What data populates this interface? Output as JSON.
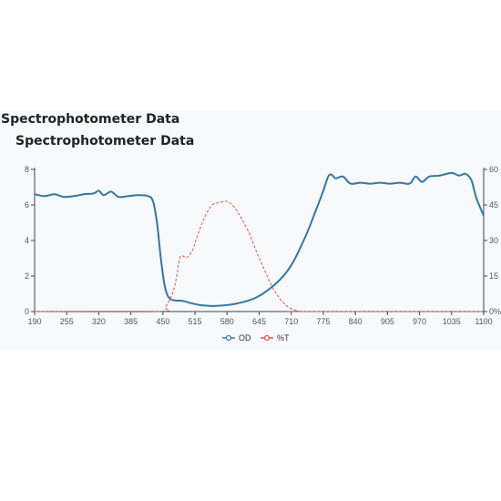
{
  "page": {
    "title_primary": "Spectrophotometer Data",
    "title_secondary": "Spectrophotometer Data"
  },
  "colors": {
    "od": "#3377a2",
    "pt": "#d9534f",
    "axis": "#444444",
    "tick_text": "#555555",
    "panel_bg": "#f7f9fb"
  },
  "chart_data": {
    "type": "line",
    "title": "Spectrophotometer Data",
    "x_ticks": [
      190,
      255,
      320,
      385,
      450,
      515,
      580,
      645,
      710,
      775,
      840,
      905,
      970,
      1035,
      1100
    ],
    "xlim": [
      190,
      1100
    ],
    "y_left": {
      "ylim": [
        0,
        8
      ],
      "ticks": [
        0,
        2,
        4,
        6,
        8
      ],
      "tick_labels": [
        "0",
        "2",
        "4",
        "6",
        "8"
      ]
    },
    "y_right": {
      "ylim": [
        0,
        60
      ],
      "ticks": [
        0,
        15,
        30,
        45,
        60
      ],
      "tick_labels": [
        "0%",
        "15",
        "30",
        "45",
        "60"
      ]
    },
    "grid": false,
    "legend_position": "bottom-center",
    "series": [
      {
        "name": "OD",
        "axis": "left",
        "style": "solid",
        "x": [
          190,
          210,
          230,
          250,
          270,
          290,
          310,
          320,
          330,
          345,
          360,
          380,
          400,
          420,
          430,
          438,
          445,
          452,
          458,
          465,
          475,
          490,
          510,
          530,
          560,
          600,
          640,
          680,
          710,
          740,
          760,
          775,
          785,
          792,
          800,
          815,
          830,
          850,
          870,
          890,
          910,
          930,
          950,
          962,
          975,
          990,
          1010,
          1035,
          1050,
          1063,
          1075,
          1085,
          1100
        ],
        "y": [
          6.6,
          6.5,
          6.6,
          6.45,
          6.5,
          6.6,
          6.65,
          6.8,
          6.55,
          6.75,
          6.45,
          6.5,
          6.55,
          6.5,
          6.2,
          5.0,
          3.2,
          1.7,
          1.0,
          0.7,
          0.62,
          0.6,
          0.45,
          0.35,
          0.32,
          0.45,
          0.8,
          1.6,
          2.6,
          4.3,
          5.7,
          6.8,
          7.6,
          7.7,
          7.5,
          7.6,
          7.2,
          7.25,
          7.2,
          7.25,
          7.2,
          7.25,
          7.2,
          7.6,
          7.3,
          7.6,
          7.65,
          7.8,
          7.65,
          7.75,
          7.4,
          6.4,
          5.4
        ]
      },
      {
        "name": "%T",
        "axis": "right",
        "style": "dashed",
        "x": [
          190,
          440,
          455,
          470,
          478,
          485,
          495,
          500,
          510,
          520,
          535,
          550,
          565,
          580,
          595,
          610,
          625,
          640,
          655,
          670,
          685,
          700,
          715,
          725,
          735,
          1100
        ],
        "y": [
          0,
          0,
          2,
          8,
          15,
          23,
          23,
          23,
          26,
          32,
          40,
          45,
          46,
          46.5,
          44,
          39,
          33,
          25,
          18,
          11,
          6,
          2.5,
          0.8,
          0.2,
          0,
          0
        ]
      }
    ]
  }
}
